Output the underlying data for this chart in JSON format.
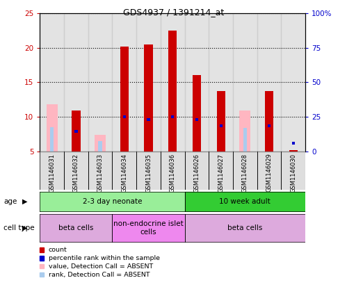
{
  "title": "GDS4937 / 1391214_at",
  "samples": [
    "GSM1146031",
    "GSM1146032",
    "GSM1146033",
    "GSM1146034",
    "GSM1146035",
    "GSM1146036",
    "GSM1146026",
    "GSM1146027",
    "GSM1146028",
    "GSM1146029",
    "GSM1146030"
  ],
  "count_values": [
    null,
    10.9,
    null,
    20.2,
    20.5,
    22.5,
    16.0,
    13.7,
    null,
    13.7,
    5.2
  ],
  "rank_values": [
    null,
    7.9,
    null,
    10.0,
    9.6,
    10.0,
    9.6,
    8.7,
    null,
    8.7,
    6.2
  ],
  "absent_value_bars": [
    11.8,
    null,
    7.4,
    null,
    null,
    null,
    null,
    null,
    10.9,
    null,
    null
  ],
  "absent_rank_bars": [
    8.5,
    null,
    6.5,
    null,
    null,
    null,
    null,
    null,
    8.4,
    null,
    null
  ],
  "rank_present_values": [
    null,
    7.9,
    null,
    10.0,
    9.6,
    10.0,
    9.6,
    8.7,
    null,
    8.7,
    6.2
  ],
  "ylim_min": 5,
  "ylim_max": 25,
  "yticks_left": [
    5,
    10,
    15,
    20,
    25
  ],
  "yticks_right": [
    0,
    25,
    50,
    75,
    100
  ],
  "age_groups": [
    {
      "label": "2-3 day neonate",
      "start": 0,
      "end": 6,
      "color": "#99EE99"
    },
    {
      "label": "10 week adult",
      "start": 6,
      "end": 11,
      "color": "#33CC33"
    }
  ],
  "cell_type_groups": [
    {
      "label": "beta cells",
      "start": 0,
      "end": 3,
      "color": "#DDAADD"
    },
    {
      "label": "non-endocrine islet\ncells",
      "start": 3,
      "end": 6,
      "color": "#EE88EE"
    },
    {
      "label": "beta cells",
      "start": 6,
      "end": 11,
      "color": "#DDAADD"
    }
  ],
  "bar_color_count": "#CC0000",
  "bar_color_rank": "#0000CC",
  "bar_color_absent_value": "#FFB6C1",
  "bar_color_absent_rank": "#AACCEE",
  "col_bg_color": "#C8C8C8",
  "bg_color": "#ffffff",
  "left_tick_color": "#CC0000",
  "right_tick_color": "#0000CC",
  "title_color": "#000000"
}
